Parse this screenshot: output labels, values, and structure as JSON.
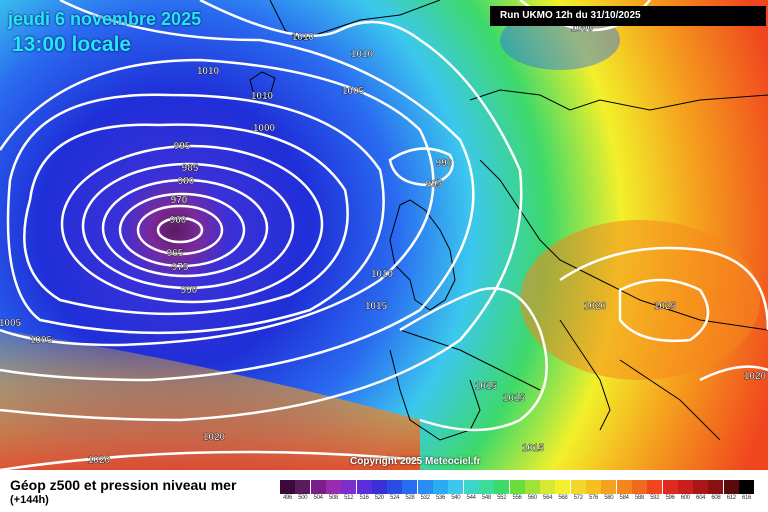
{
  "header": {
    "date": "jeudi 6 novembre 2025",
    "time": "13:00 locale",
    "run": "Run UKMO 12h du 31/10/2025",
    "copyright": "Copyright 2025 Meteociel.fr"
  },
  "footer": {
    "title": "Géop z500 et pression niveau mer",
    "subtitle": "(+144h)"
  },
  "colors": {
    "low_core": "#5a1a5e",
    "deep_blue": "#1f2fd8",
    "ocean_blue": "#2a6cf0",
    "cyan": "#3cc8ee",
    "green": "#3dd96a",
    "yellow": "#f2f02a",
    "orange": "#f5a21e",
    "red": "#f0451e",
    "isobar": "#ffffff",
    "coastline": "#000000"
  },
  "legend": {
    "values": [
      "496",
      "500",
      "504",
      "508",
      "512",
      "516",
      "520",
      "524",
      "528",
      "532",
      "536",
      "540",
      "544",
      "548",
      "552",
      "556",
      "560",
      "564",
      "568",
      "572",
      "576",
      "580",
      "584",
      "588",
      "592",
      "596",
      "600",
      "604",
      "608",
      "612",
      "616"
    ],
    "colors": [
      "#3a0a3a",
      "#5a1a5e",
      "#7a1f8a",
      "#9a2aae",
      "#7c2ecb",
      "#5a2edb",
      "#3a30d8",
      "#2a4ce4",
      "#2a6cf0",
      "#2a8cf5",
      "#2aacf5",
      "#3cc8ee",
      "#3cd6c8",
      "#3cdc9a",
      "#3dd96a",
      "#6ade3c",
      "#a0e23a",
      "#d6e832",
      "#f2f02a",
      "#f2d82a",
      "#f5c020",
      "#f5a21e",
      "#f5861e",
      "#f06a1e",
      "#f0451e",
      "#e02a1e",
      "#c81e1e",
      "#a81616",
      "#881010",
      "#5a0a0a",
      "#000000"
    ]
  },
  "pressure_labels": [
    {
      "text": "1010"
    },
    {
      "text": "1010"
    },
    {
      "text": "1010"
    },
    {
      "text": "1010"
    },
    {
      "text": "1000"
    },
    {
      "text": "1005"
    },
    {
      "text": "1000"
    },
    {
      "text": "995"
    },
    {
      "text": "990"
    },
    {
      "text": "995"
    },
    {
      "text": "985"
    },
    {
      "text": "980"
    },
    {
      "text": "970"
    },
    {
      "text": "960"
    },
    {
      "text": "965"
    },
    {
      "text": "975"
    },
    {
      "text": "990"
    },
    {
      "text": "1010"
    },
    {
      "text": "1015"
    },
    {
      "text": "1005"
    },
    {
      "text": "1005"
    },
    {
      "text": "1020"
    },
    {
      "text": "1025"
    },
    {
      "text": "1020"
    },
    {
      "text": "1015"
    },
    {
      "text": "1015"
    },
    {
      "text": "1015"
    },
    {
      "text": "1020"
    },
    {
      "text": "1020"
    }
  ]
}
